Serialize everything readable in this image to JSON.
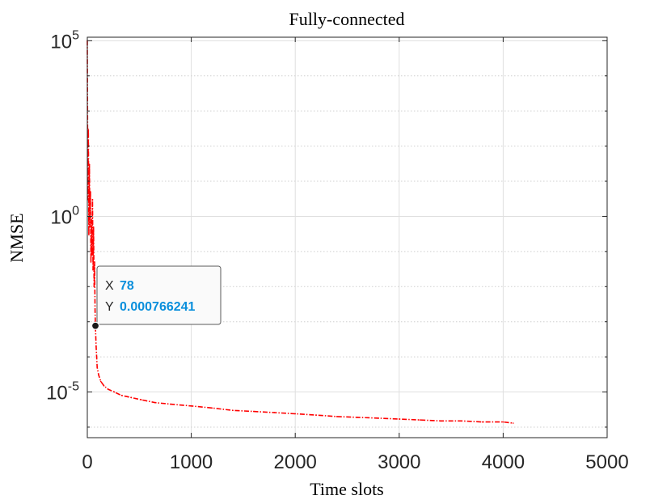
{
  "chart_data": {
    "type": "line",
    "title": "Fully-connected",
    "xlabel": "Time slots",
    "ylabel": "NMSE",
    "xlim": [
      0,
      5000
    ],
    "ylim_log10": [
      -6.3,
      5.1
    ],
    "y_scale": "log",
    "grid": true,
    "x_ticks": [
      0,
      1000,
      2000,
      3000,
      4000,
      5000
    ],
    "y_ticks": [
      {
        "exp": -5,
        "base": "10",
        "sup": "-5"
      },
      {
        "exp": 0,
        "base": "10",
        "sup": "0"
      },
      {
        "exp": 5,
        "base": "10",
        "sup": "5"
      }
    ],
    "series": [
      {
        "color": "#ff0000",
        "line_style": "dash-dot",
        "x": [
          0,
          5,
          10,
          15,
          20,
          25,
          30,
          35,
          40,
          45,
          50,
          55,
          60,
          65,
          70,
          75,
          78,
          85,
          95,
          110,
          130,
          160,
          200,
          260,
          330,
          420,
          520,
          650,
          800,
          1000,
          1200,
          1400,
          1600,
          1800,
          2000,
          2200,
          2400,
          2600,
          2800,
          3000,
          3200,
          3400,
          3600,
          3800,
          4000,
          4096
        ],
        "y": [
          100000,
          3,
          300,
          0.3,
          30,
          0.5,
          5,
          0.05,
          0.8,
          0.08,
          3,
          0.03,
          0.5,
          0.01,
          0.05,
          0.002,
          0.000766241,
          0.0002,
          5e-05,
          3e-05,
          2e-05,
          1.5e-05,
          1.2e-05,
          1e-05,
          8e-06,
          7e-06,
          6e-06,
          5e-06,
          4.5e-06,
          4e-06,
          3.5e-06,
          3e-06,
          2.8e-06,
          2.6e-06,
          2.4e-06,
          2.2e-06,
          2e-06,
          1.9e-06,
          1.8e-06,
          1.7e-06,
          1.6e-06,
          1.5e-06,
          1.5e-06,
          1.4e-06,
          1.4e-06,
          1.3e-06
        ]
      }
    ],
    "datatip": {
      "x_label": "X",
      "x_value": "78",
      "y_label": "Y",
      "y_value": "0.000766241",
      "x": 78,
      "y": 0.000766241,
      "value_color": "#0a8fdc"
    }
  }
}
